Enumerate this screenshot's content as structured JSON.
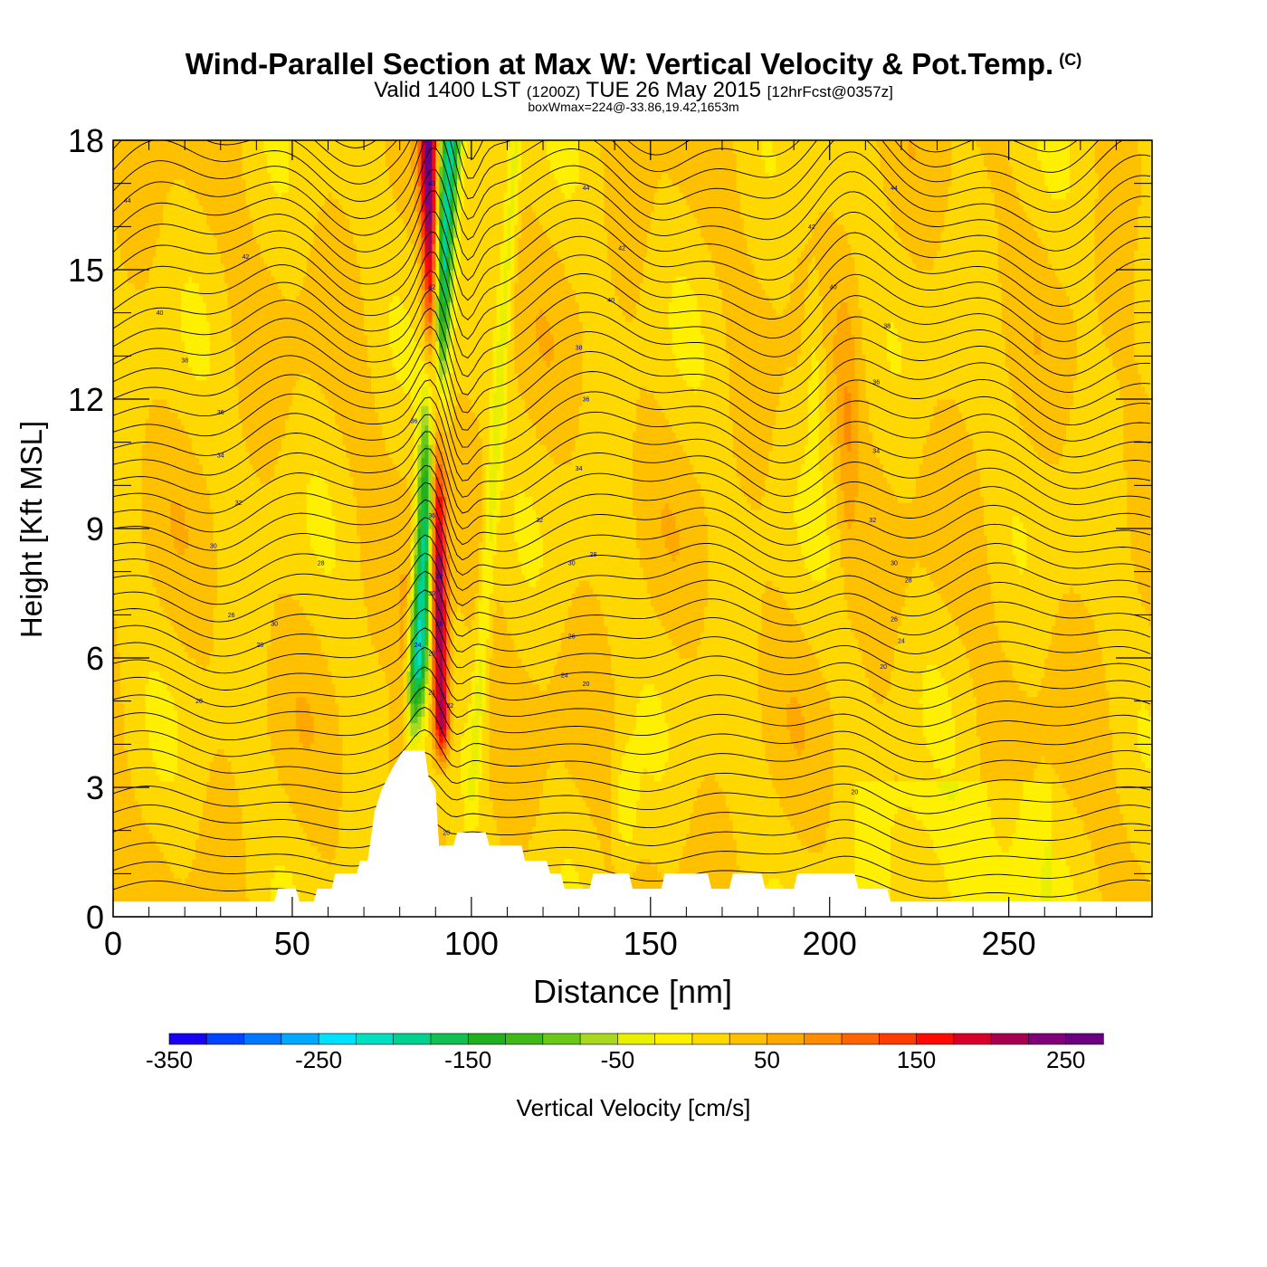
{
  "title": {
    "main": "Wind-Parallel Section at Max W: Vertical Velocity & Pot.Temp.",
    "copyright": "(C)",
    "valid_prefix": "Valid 1400 LST",
    "valid_utc": "(1200Z)",
    "valid_date": "TUE 26 May 2015",
    "forecast_info": "[12hrFcst@0357z]",
    "box_info": "boxWmax=224@-33.86,19.42,1653m"
  },
  "chart_data": {
    "type": "heatmap",
    "xlabel": "Distance [nm]",
    "ylabel": "Height [Kft MSL]",
    "xlim": [
      0,
      290
    ],
    "ylim": [
      0,
      18
    ],
    "x_ticks": [
      0,
      50,
      100,
      150,
      200,
      250
    ],
    "y_ticks": [
      0,
      3,
      6,
      9,
      12,
      15,
      18
    ],
    "colorbar": {
      "label": "Vertical Velocity [cm/s]",
      "range": [
        -350,
        275
      ],
      "step": 25,
      "tick_labels": [
        "-350",
        "-250",
        "-150",
        "-50",
        "50",
        "150",
        "250"
      ],
      "tick_values": [
        -350,
        -250,
        -150,
        -50,
        50,
        150,
        250
      ],
      "colors": [
        "#1a00f0",
        "#0044ff",
        "#0077ff",
        "#00a8ff",
        "#00e0ff",
        "#00e0c0",
        "#00d090",
        "#10c050",
        "#20b020",
        "#40b818",
        "#6ac818",
        "#a8d820",
        "#e8f000",
        "#fff000",
        "#ffd800",
        "#ffc000",
        "#ffa800",
        "#ff8c00",
        "#ff6400",
        "#ff3c00",
        "#ff0a00",
        "#d80028",
        "#a80050",
        "#800078",
        "#6a0080"
      ]
    },
    "updraft": {
      "peak_cm_s": 224,
      "x_nm_at_3kft": 92,
      "x_nm_at_18kft": 88
    },
    "downdraft": {
      "min_cm_s": -230,
      "x_nm_at_6kft": 85,
      "x_nm_at_18kft": 94
    },
    "terrain_kft": [
      [
        0,
        0.35
      ],
      [
        45,
        0.35
      ],
      [
        46,
        0.65
      ],
      [
        51,
        0.65
      ],
      [
        52,
        0.35
      ],
      [
        56,
        0.35
      ],
      [
        57,
        0.65
      ],
      [
        61,
        0.65
      ],
      [
        62,
        1.0
      ],
      [
        68,
        1.0
      ],
      [
        69,
        1.3
      ],
      [
        71,
        1.3
      ],
      [
        72,
        1.85
      ],
      [
        73,
        2.45
      ],
      [
        75,
        2.95
      ],
      [
        78,
        3.45
      ],
      [
        81,
        3.85
      ],
      [
        87,
        3.85
      ],
      [
        88,
        3.25
      ],
      [
        90,
        2.95
      ],
      [
        91,
        1.65
      ],
      [
        95,
        1.65
      ],
      [
        96,
        1.95
      ],
      [
        104,
        1.95
      ],
      [
        105,
        1.65
      ],
      [
        114,
        1.65
      ],
      [
        115,
        1.3
      ],
      [
        121,
        1.3
      ],
      [
        122,
        1.0
      ],
      [
        125,
        1.0
      ],
      [
        126,
        0.65
      ],
      [
        133,
        0.65
      ],
      [
        134,
        1.0
      ],
      [
        144,
        1.0
      ],
      [
        145,
        0.65
      ],
      [
        153,
        0.65
      ],
      [
        154,
        1.0
      ],
      [
        166,
        1.0
      ],
      [
        167,
        0.65
      ],
      [
        172,
        0.65
      ],
      [
        173,
        1.0
      ],
      [
        181,
        1.0
      ],
      [
        182,
        0.65
      ],
      [
        190,
        0.65
      ],
      [
        191,
        1.0
      ],
      [
        207,
        1.0
      ],
      [
        208,
        0.65
      ],
      [
        216,
        0.65
      ],
      [
        217,
        0.35
      ],
      [
        290,
        0.35
      ]
    ],
    "theta_contour_labels": [
      {
        "x": 4,
        "y": 16.6,
        "text": "44"
      },
      {
        "x": 37,
        "y": 15.3,
        "text": "42"
      },
      {
        "x": 13,
        "y": 14.0,
        "text": "40"
      },
      {
        "x": 20,
        "y": 12.9,
        "text": "38"
      },
      {
        "x": 30,
        "y": 11.7,
        "text": "36"
      },
      {
        "x": 30,
        "y": 10.7,
        "text": "34"
      },
      {
        "x": 35,
        "y": 9.6,
        "text": "32"
      },
      {
        "x": 28,
        "y": 8.6,
        "text": "30"
      },
      {
        "x": 58,
        "y": 8.2,
        "text": "28"
      },
      {
        "x": 33,
        "y": 7.0,
        "text": "26"
      },
      {
        "x": 45,
        "y": 6.8,
        "text": "30"
      },
      {
        "x": 41,
        "y": 6.3,
        "text": "28"
      },
      {
        "x": 24,
        "y": 5.0,
        "text": "20"
      },
      {
        "x": 89,
        "y": 17.0,
        "text": "43"
      },
      {
        "x": 89,
        "y": 14.6,
        "text": "42"
      },
      {
        "x": 84,
        "y": 11.5,
        "text": "36"
      },
      {
        "x": 89,
        "y": 9.3,
        "text": "36"
      },
      {
        "x": 91,
        "y": 7.9,
        "text": "32"
      },
      {
        "x": 89,
        "y": 7.5,
        "text": "30"
      },
      {
        "x": 91,
        "y": 6.8,
        "text": "28"
      },
      {
        "x": 85,
        "y": 6.3,
        "text": "24"
      },
      {
        "x": 89,
        "y": 6.1,
        "text": "20"
      },
      {
        "x": 89,
        "y": 5.2,
        "text": "21"
      },
      {
        "x": 94,
        "y": 4.9,
        "text": "22"
      },
      {
        "x": 93,
        "y": 1.95,
        "text": "20"
      },
      {
        "x": 132,
        "y": 16.9,
        "text": "44"
      },
      {
        "x": 142,
        "y": 15.5,
        "text": "42"
      },
      {
        "x": 139,
        "y": 14.3,
        "text": "40"
      },
      {
        "x": 130,
        "y": 13.2,
        "text": "38"
      },
      {
        "x": 132,
        "y": 12.0,
        "text": "36"
      },
      {
        "x": 130,
        "y": 10.4,
        "text": "34"
      },
      {
        "x": 119,
        "y": 9.2,
        "text": "32"
      },
      {
        "x": 128,
        "y": 8.2,
        "text": "30"
      },
      {
        "x": 134,
        "y": 8.4,
        "text": "28"
      },
      {
        "x": 128,
        "y": 6.5,
        "text": "26"
      },
      {
        "x": 126,
        "y": 5.6,
        "text": "24"
      },
      {
        "x": 132,
        "y": 5.4,
        "text": "20"
      },
      {
        "x": 218,
        "y": 16.9,
        "text": "44"
      },
      {
        "x": 195,
        "y": 16.0,
        "text": "42"
      },
      {
        "x": 201,
        "y": 14.6,
        "text": "40"
      },
      {
        "x": 216,
        "y": 13.7,
        "text": "38"
      },
      {
        "x": 213,
        "y": 12.4,
        "text": "36"
      },
      {
        "x": 213,
        "y": 10.8,
        "text": "34"
      },
      {
        "x": 212,
        "y": 9.2,
        "text": "32"
      },
      {
        "x": 218,
        "y": 8.2,
        "text": "30"
      },
      {
        "x": 222,
        "y": 7.8,
        "text": "28"
      },
      {
        "x": 218,
        "y": 6.9,
        "text": "26"
      },
      {
        "x": 220,
        "y": 6.4,
        "text": "24"
      },
      {
        "x": 215,
        "y": 5.8,
        "text": "20"
      },
      {
        "x": 207,
        "y": 2.9,
        "text": "20"
      }
    ]
  }
}
